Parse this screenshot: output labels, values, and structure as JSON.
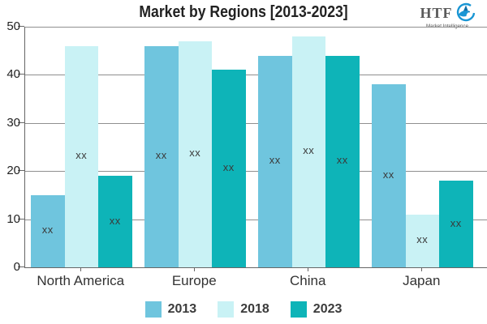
{
  "title": "Market by Regions [2013-2023]",
  "logo": {
    "text": "HTF",
    "subtext": "Market Intelligence",
    "blue": "#1a96d4",
    "dark_blue": "#0d6fa8"
  },
  "chart_data": {
    "type": "bar",
    "title": "Market by Regions [2013-2023]",
    "categories": [
      "North America",
      "Europe",
      "China",
      "Japan"
    ],
    "series": [
      {
        "name": "2013",
        "color": "#6fc5de",
        "values": [
          15,
          46,
          44,
          38
        ]
      },
      {
        "name": "2018",
        "color": "#c9f2f5",
        "values": [
          46,
          47,
          48,
          11
        ]
      },
      {
        "name": "2023",
        "color": "#0eb4b8",
        "values": [
          19,
          41,
          44,
          18
        ]
      }
    ],
    "bar_label": "xx",
    "xlabel": "",
    "ylabel": "",
    "ylim": [
      0,
      50
    ],
    "ytick_labels": [
      "0",
      "10",
      "20",
      "30",
      "40",
      "50"
    ],
    "grid": true,
    "legend_position": "bottom"
  },
  "colors": {
    "grid": "#8f8f8f",
    "axis": "#666666",
    "tick_text": "#222222",
    "category_text": "#333333",
    "bar_label_text": "#3a3a3a"
  }
}
